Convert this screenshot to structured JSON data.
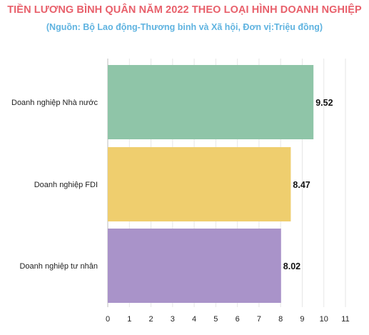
{
  "chart_data": {
    "type": "bar",
    "orientation": "horizontal",
    "title": "TIỀN LƯƠNG BÌNH QUÂN NĂM 2022 THEO LOẠI HÌNH DOANH NGHIỆP",
    "subtitle": "(Nguồn: Bộ Lao động-Thương binh và Xã hội, Đơn vị:Triệu đồng)",
    "categories": [
      "Doanh nghiệp Nhà nước",
      "Doanh nghiệp FDI",
      "Doanh nghiệp tư nhân"
    ],
    "values": [
      9.52,
      8.47,
      8.02
    ],
    "value_labels": [
      "9.52",
      "8.47",
      "8.02"
    ],
    "colors": [
      "#8fc5a8",
      "#efce6e",
      "#a993c9"
    ],
    "xlim": [
      0,
      11
    ],
    "x_ticks": [
      "0",
      "1",
      "2",
      "3",
      "4",
      "5",
      "6",
      "7",
      "8",
      "9",
      "10",
      "11"
    ],
    "grid": true,
    "legend": "none"
  }
}
